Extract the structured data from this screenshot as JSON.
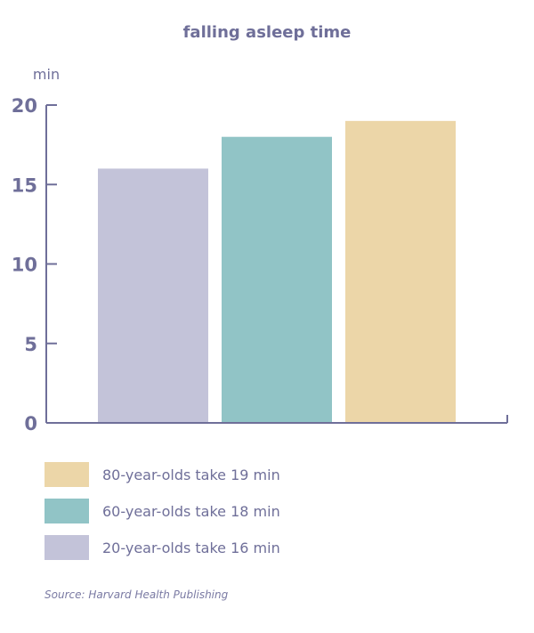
{
  "chart_data": {
    "type": "bar",
    "title": "falling asleep time",
    "ylabel": "min",
    "xlabel": "",
    "categories": [
      "20-year-olds",
      "60-year-olds",
      "80-year-olds"
    ],
    "values": [
      16,
      18,
      19
    ],
    "ylim": [
      0,
      20
    ],
    "yticks": [
      0,
      5,
      10,
      15,
      20
    ],
    "colors": [
      "#c3c3d9",
      "#91c4c6",
      "#ecd6a8"
    ],
    "axis_color": "#6f6f99",
    "grid": false,
    "legend": {
      "placement": "bottom-left",
      "items": [
        {
          "label": "80-year-olds take 19 min",
          "color": "#ecd6a8"
        },
        {
          "label": "60-year-olds take 18 min",
          "color": "#91c4c6"
        },
        {
          "label": "20-year-olds take 16 min",
          "color": "#c3c3d9"
        }
      ]
    }
  },
  "source": "Source: Harvard Health Publishing"
}
